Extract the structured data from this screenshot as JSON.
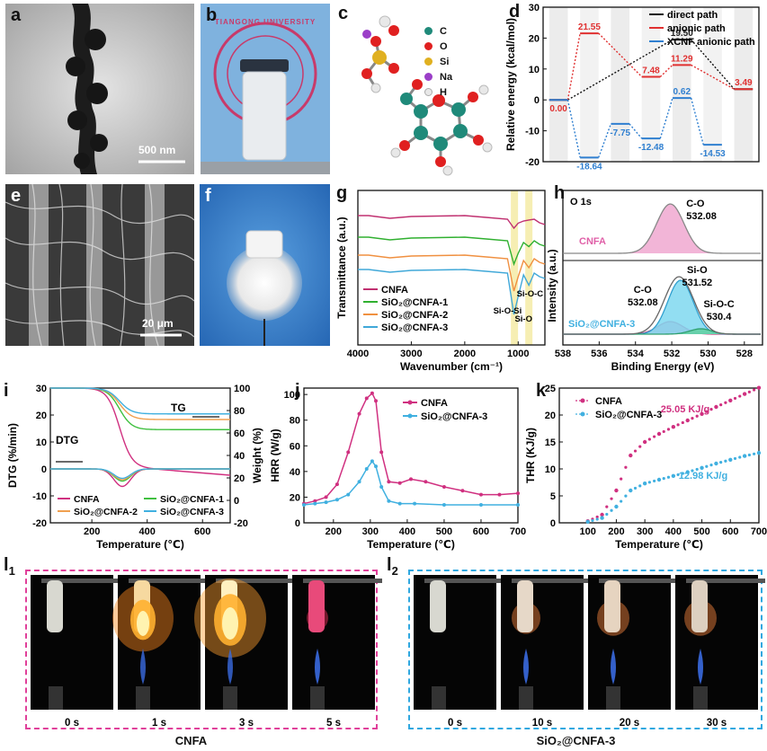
{
  "panels": {
    "a": {
      "label": "a",
      "scale": "500 nm"
    },
    "b": {
      "label": "b",
      "seal_text": "TIANGONG UNIVERSITY"
    },
    "c": {
      "label": "c",
      "legend": [
        {
          "el": "C",
          "color": "#1f8a7a"
        },
        {
          "el": "O",
          "color": "#e02020"
        },
        {
          "el": "Si",
          "color": "#e0b020"
        },
        {
          "el": "Na",
          "color": "#9b3fc8"
        },
        {
          "el": "H",
          "color": "#e8e8e8"
        }
      ]
    },
    "d": {
      "label": "d"
    },
    "e": {
      "label": "e",
      "scale": "20 μm"
    },
    "f": {
      "label": "f"
    },
    "g": {
      "label": "g",
      "peak_labels": [
        "Si-O-C",
        "Si-O-Si",
        "Si-O"
      ]
    },
    "h": {
      "label": "h",
      "title": "O 1s",
      "top": {
        "name": "CNFA",
        "peak_label": "C-O",
        "peak_value": "532.08"
      },
      "bottom": {
        "name": "SiO₂@CNFA-3",
        "peaks": [
          {
            "label": "C-O",
            "value": "532.08"
          },
          {
            "label": "Si-O",
            "value": "531.52"
          },
          {
            "label": "Si-O-C",
            "value": "530.4"
          }
        ]
      }
    },
    "i": {
      "label": "i",
      "tg_label": "TG",
      "dtg_label": "DTG"
    },
    "j": {
      "label": "j"
    },
    "k": {
      "label": "k",
      "annotations": [
        "25.05 KJ/g",
        "12.98 KJ/g"
      ]
    },
    "l1": {
      "label": "l",
      "sub": "1",
      "caption": "CNFA",
      "frames": [
        "0 s",
        "1 s",
        "3 s",
        "5 s"
      ]
    },
    "l2": {
      "label": "l",
      "sub": "2",
      "caption": "SiO₂@CNFA-3",
      "frames": [
        "0 s",
        "10 s",
        "20 s",
        "30 s"
      ]
    }
  },
  "chart_data": [
    {
      "id": "d",
      "type": "line",
      "ylabel": "Relative energy (kcal/mol)",
      "xlabel": "",
      "ylim": [
        -20,
        30
      ],
      "yticks": [
        -20,
        -10,
        0,
        10,
        20,
        30
      ],
      "legend_position": "top-right",
      "series": [
        {
          "name": "direct path",
          "color": "#111111",
          "points": [
            [
              0,
              0
            ],
            [
              4,
              19.5
            ],
            [
              6,
              3.49
            ]
          ],
          "labels": [
            "",
            "19.50",
            ""
          ]
        },
        {
          "name": "anionic path",
          "color": "#e03030",
          "points": [
            [
              0,
              0
            ],
            [
              1,
              21.55
            ],
            [
              3,
              7.48
            ],
            [
              4,
              11.29
            ],
            [
              6,
              3.49
            ]
          ],
          "labels": [
            "0.00",
            "21.55",
            "7.48",
            "11.29",
            "3.49"
          ]
        },
        {
          "name": "XCNF anionic path",
          "color": "#2f7fd0",
          "points": [
            [
              0,
              0
            ],
            [
              1,
              -18.64
            ],
            [
              2,
              -7.75
            ],
            [
              3,
              -12.48
            ],
            [
              4,
              0.62
            ],
            [
              5,
              -14.53
            ]
          ],
          "labels": [
            "",
            "-18.64",
            "-7.75",
            "-12.48",
            "0.62",
            "-14.53"
          ]
        }
      ]
    },
    {
      "id": "g",
      "type": "line",
      "xlabel": "Wavenumber (cm⁻¹)",
      "ylabel": "Transmittance (a.u.)",
      "xlim": [
        4000,
        500
      ],
      "xticks": [
        4000,
        3000,
        2000,
        1000
      ],
      "highlight_bands": [
        1070,
        800
      ],
      "series": [
        {
          "name": "CNFA",
          "color": "#c03070"
        },
        {
          "name": "SiO₂@CNFA-1",
          "color": "#30b030"
        },
        {
          "name": "SiO₂@CNFA-2",
          "color": "#f09040"
        },
        {
          "name": "SiO₂@CNFA-3",
          "color": "#40a8d8"
        }
      ]
    },
    {
      "id": "h",
      "type": "line",
      "xlabel": "Binding Energy (eV)",
      "ylabel": "Intensity (a.u.)",
      "xlim": [
        538,
        527
      ],
      "xticks": [
        538,
        536,
        534,
        532,
        530,
        528
      ]
    },
    {
      "id": "i",
      "type": "line",
      "xlabel": "Temperature (℃)",
      "ylabel": "DTG (%/min)",
      "y2label": "Weight (%)",
      "xlim": [
        50,
        700
      ],
      "ylim": [
        -20,
        30
      ],
      "y2lim": [
        -20,
        100
      ],
      "xticks": [
        200,
        400,
        600
      ],
      "yticks": [
        -20,
        -10,
        0,
        10,
        20,
        30
      ],
      "y2ticks": [
        -20,
        0,
        20,
        40,
        60,
        80,
        100
      ],
      "series": [
        {
          "name": "CNFA",
          "color": "#d03080"
        },
        {
          "name": "SiO₂@CNFA-1",
          "color": "#40c040"
        },
        {
          "name": "SiO₂@CNFA-2",
          "color": "#f0a050"
        },
        {
          "name": "SiO₂@CNFA-3",
          "color": "#40b0e0"
        }
      ]
    },
    {
      "id": "j",
      "type": "line",
      "xlabel": "Temperature (℃)",
      "ylabel": "HRR (W/g)",
      "xlim": [
        120,
        700
      ],
      "ylim": [
        0,
        105
      ],
      "xticks": [
        200,
        300,
        400,
        500,
        600,
        700
      ],
      "yticks": [
        0,
        20,
        40,
        60,
        80,
        100
      ],
      "series": [
        {
          "name": "CNFA",
          "color": "#d03080",
          "x": [
            120,
            150,
            180,
            210,
            240,
            270,
            290,
            305,
            315,
            330,
            350,
            380,
            410,
            450,
            500,
            550,
            600,
            650,
            700
          ],
          "y": [
            15,
            17,
            20,
            30,
            55,
            85,
            97,
            101,
            95,
            55,
            32,
            31,
            34,
            32,
            28,
            25,
            22,
            22,
            23
          ]
        },
        {
          "name": "SiO₂@CNFA-3",
          "color": "#40b0e0",
          "x": [
            120,
            150,
            180,
            210,
            240,
            270,
            290,
            305,
            315,
            330,
            350,
            380,
            420,
            500,
            600,
            700
          ],
          "y": [
            14,
            15,
            16,
            18,
            22,
            32,
            42,
            48,
            44,
            28,
            17,
            15,
            15,
            14,
            14,
            14
          ]
        }
      ]
    },
    {
      "id": "k",
      "type": "scatter",
      "xlabel": "Temperature (℃)",
      "ylabel": "THR (KJ/g)",
      "xlim": [
        0,
        700
      ],
      "ylim": [
        0,
        25
      ],
      "xticks": [
        100,
        200,
        300,
        400,
        500,
        600,
        700
      ],
      "yticks": [
        0,
        5,
        10,
        15,
        20,
        25
      ],
      "series": [
        {
          "name": "CNFA",
          "color": "#d03080",
          "x": [
            100,
            150,
            200,
            250,
            300,
            350,
            400,
            450,
            500,
            550,
            600,
            650,
            700
          ],
          "y": [
            0.3,
            1.5,
            6,
            12.5,
            15,
            16.5,
            17.8,
            19,
            20.2,
            21.5,
            22.7,
            23.9,
            25.05
          ]
        },
        {
          "name": "SiO₂@CNFA-3",
          "color": "#40b0e0",
          "x": [
            100,
            150,
            200,
            250,
            300,
            350,
            400,
            450,
            500,
            550,
            600,
            650,
            700
          ],
          "y": [
            0.2,
            0.9,
            3,
            6,
            7.3,
            8,
            8.7,
            9.4,
            10.2,
            11,
            11.7,
            12.4,
            12.98
          ]
        }
      ]
    }
  ]
}
